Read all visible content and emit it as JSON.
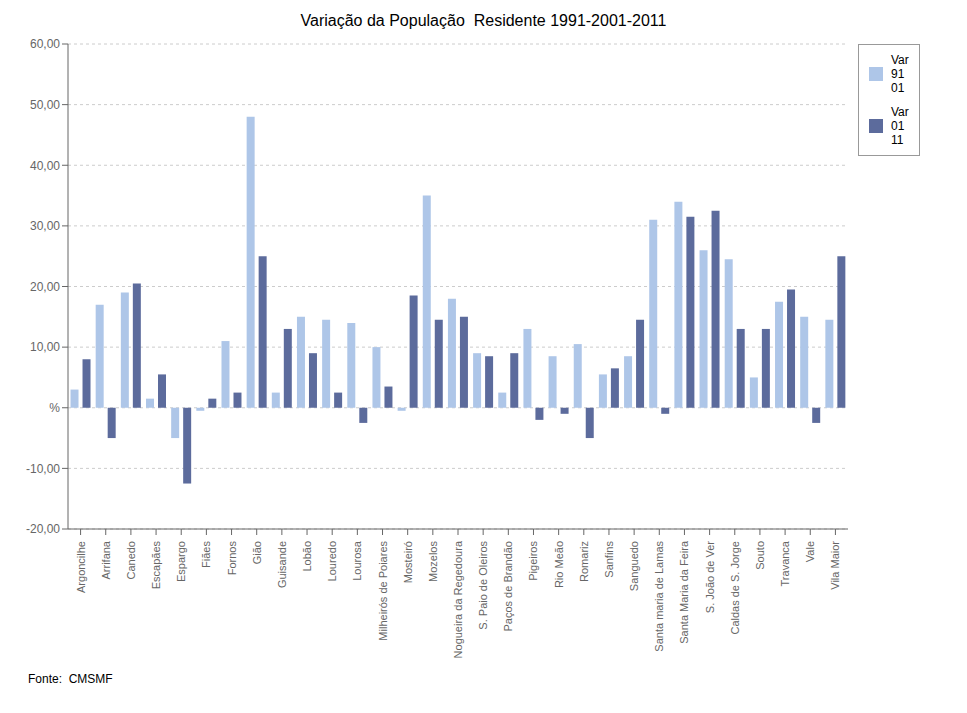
{
  "chart_data": {
    "type": "bar",
    "title": "Variação da População  Residente 1991-2001-2011",
    "annotations": [
      "Fonte:  CMSMF"
    ],
    "categories": [
      "Argoncilhe",
      "Arrifana",
      "Canedo",
      "Escapães",
      "Espargo",
      "Fiães",
      "Fornos",
      "Gião",
      "Guisande",
      "Lobão",
      "Louredo",
      "Lourosa",
      "Milheirós de Poiares",
      "Mosteiró",
      "Mozelos",
      "Nogueira da Regedoura",
      "S. Paio de Oleiros",
      "Paços de Brandão",
      "Pigeiros",
      "Rio Meão",
      "Romariz",
      "Sanfins",
      "Sanguedo",
      "Santa maria de Lamas",
      "Santa Maria da Feira",
      "S. João de Ver",
      "Caldas de S. Jorge",
      "Souto",
      "Travanca",
      "Vale",
      "Vila Maior"
    ],
    "series": [
      {
        "name": "Var\n91\n01",
        "color": "#aec6e8",
        "values": [
          3.0,
          17.0,
          19.0,
          1.5,
          -5.0,
          -0.5,
          11.0,
          48.0,
          2.5,
          15.0,
          14.5,
          14.0,
          10.0,
          -0.5,
          35.0,
          18.0,
          9.0,
          2.5,
          13.0,
          8.5,
          10.5,
          5.5,
          8.5,
          31.0,
          34.0,
          26.0,
          24.5,
          5.0,
          17.5,
          15.0,
          14.5
        ]
      },
      {
        "name": "Var\n01\n11",
        "color": "#5c6b9c",
        "values": [
          8.0,
          -5.0,
          20.5,
          5.5,
          -12.5,
          1.5,
          2.5,
          25.0,
          13.0,
          9.0,
          2.5,
          -2.5,
          3.5,
          18.5,
          14.5,
          15.0,
          8.5,
          9.0,
          -2.0,
          -1.0,
          -5.0,
          6.5,
          14.5,
          -1.0,
          31.5,
          32.5,
          13.0,
          13.0,
          19.5,
          -2.5,
          25.0
        ]
      }
    ],
    "ylim": [
      -20.0,
      60.0
    ],
    "yticks": [
      {
        "value": -20,
        "label": "-20,00"
      },
      {
        "value": -10,
        "label": "-10,00"
      },
      {
        "value": 0,
        "label": "%"
      },
      {
        "value": 10,
        "label": "10,00"
      },
      {
        "value": 20,
        "label": "20,00"
      },
      {
        "value": 30,
        "label": "30,00"
      },
      {
        "value": 40,
        "label": "40,00"
      },
      {
        "value": 50,
        "label": "50,00"
      },
      {
        "value": 60,
        "label": "60,00"
      }
    ],
    "grid": true,
    "legend": "right"
  }
}
